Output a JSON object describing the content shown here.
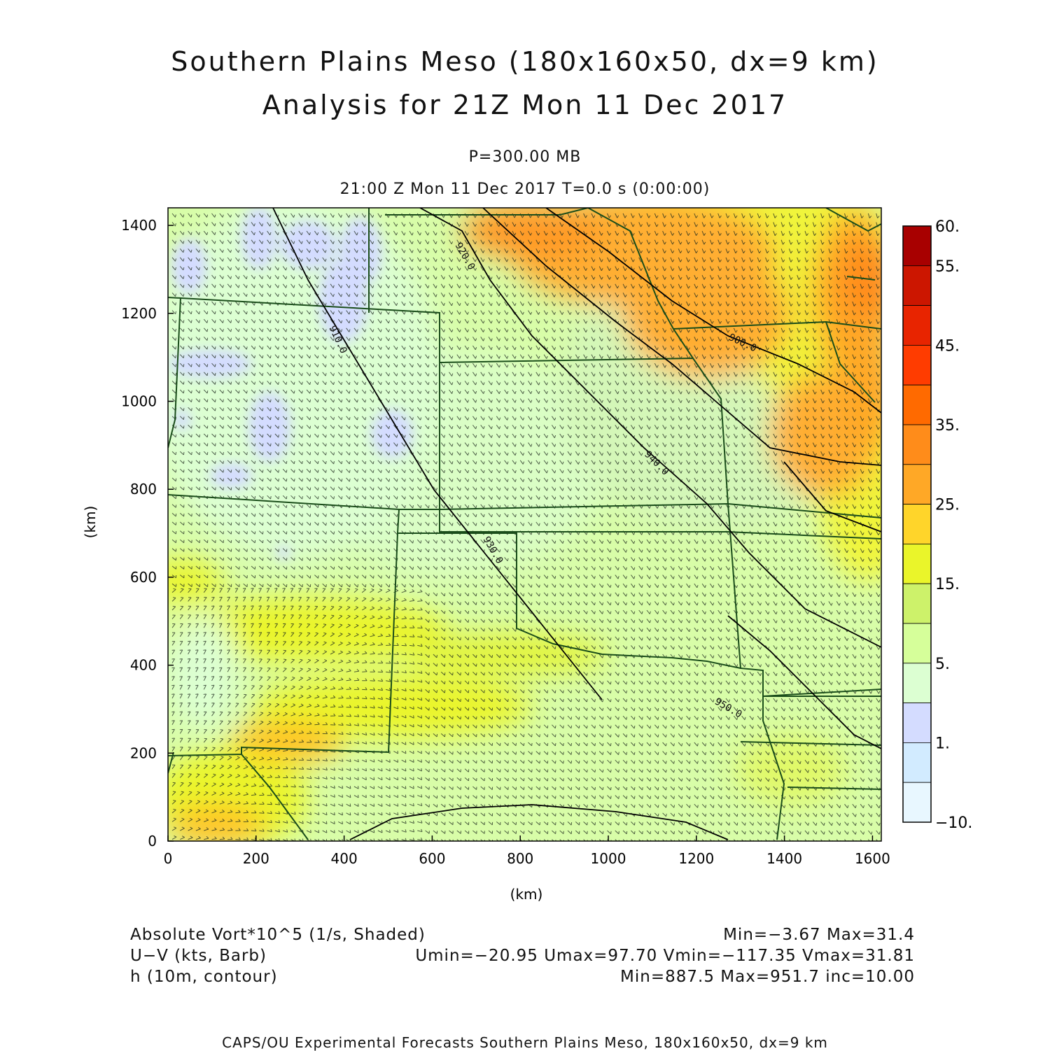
{
  "header": {
    "title_line1": "Southern Plains Meso (180x160x50, dx=9 km)",
    "title_line2": "Analysis for 21Z Mon 11 Dec 2017",
    "level": "P=300.00 MB",
    "time": "21:00 Z Mon 11 Dec 2017    T=0.0 s (0:00:00)"
  },
  "axes": {
    "xlabel": "(km)",
    "ylabel": "(km)",
    "xlim": [
      0,
      1620
    ],
    "ylim": [
      0,
      1440
    ],
    "x_ticks": [
      "0",
      "200",
      "400",
      "600",
      "800",
      "1000",
      "1200",
      "1400",
      "1600"
    ],
    "y_ticks": [
      "0",
      "200",
      "400",
      "600",
      "800",
      "1000",
      "1200",
      "1400"
    ]
  },
  "colorbar": {
    "labels": [
      "60.",
      "55.",
      "45.",
      "35.",
      "25.",
      "15.",
      "5.",
      "1.",
      "−10."
    ],
    "colors": [
      "#a80000",
      "#cc1600",
      "#e82400",
      "#ff3c00",
      "#ff6a00",
      "#ff8c1a",
      "#ffa826",
      "#ffd52a",
      "#eaf52a",
      "#cdf26a",
      "#d6ff9a",
      "#dcffd2",
      "#d4dcff",
      "#d2ebff",
      "#e8f7ff"
    ]
  },
  "contours": [
    "900.0",
    "910.0",
    "920.0",
    "930.0",
    "940.0",
    "950.0"
  ],
  "legend": {
    "vort_label": "Absolute Vort*10^5 (1/s, Shaded)",
    "vort_stats": "Min=−3.67 Max=31.4",
    "wind_label": "U−V (kts, Barb)",
    "wind_stats": "Umin=−20.95 Umax=97.70 Vmin=−117.35 Vmax=31.81",
    "height_label": "h (10m, contour)",
    "height_stats": "Min=887.5 Max=951.7 inc=10.00"
  },
  "footer": "CAPS/OU Experimental Forecasts  Southern Plains Meso, 180x160x50, dx=9 km",
  "colors": {
    "border": "#1a4d1a",
    "barb": "#1e2a1e",
    "contour": "#000000"
  }
}
